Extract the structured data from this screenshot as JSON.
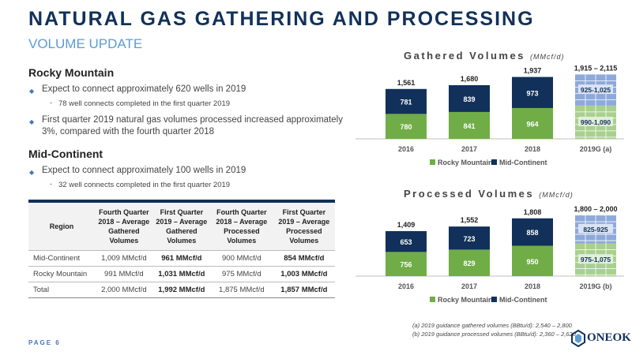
{
  "header": {
    "title": "NATURAL GAS GATHERING AND PROCESSING",
    "subtitle": "VOLUME UPDATE"
  },
  "rocky": {
    "heading": "Rocky Mountain",
    "b1": "Expect to connect approximately 620 wells in 2019",
    "b1_sub": "78 well connects completed in the first quarter 2019",
    "b2": "First quarter 2019 natural gas volumes processed increased approximately 3%, compared with the fourth quarter 2018"
  },
  "midcon": {
    "heading": "Mid-Continent",
    "b1": "Expect to connect approximately 100 wells in 2019",
    "b1_sub": "32 well connects completed in the first quarter 2019"
  },
  "table": {
    "headers": [
      "Region",
      "Fourth Quarter 2018 – Average Gathered Volumes",
      "First Quarter 2019 – Average Gathered Volumes",
      "Fourth Quarter 2018 – Average Processed Volumes",
      "First Quarter 2019 – Average Processed Volumes"
    ],
    "rows": [
      [
        "Mid-Continent",
        "1,009 MMcf/d",
        "961 MMcf/d",
        "900 MMcf/d",
        "854 MMcf/d"
      ],
      [
        "Rocky Mountain",
        "991 MMcf/d",
        "1,031 MMcf/d",
        "975 MMcf/d",
        "1,003 MMcf/d"
      ],
      [
        "Total",
        "2,000 MMcf/d",
        "1,992 MMcf/d",
        "1,875 MMcf/d",
        "1,857 MMcf/d"
      ]
    ]
  },
  "chart_data": [
    {
      "type": "bar",
      "stacked": true,
      "title": "Gathered Volumes",
      "unit": "(MMcf/d)",
      "categories": [
        "2016",
        "2017",
        "2018",
        "2019G (a)"
      ],
      "series": [
        {
          "name": "Rocky Mountain",
          "values": [
            780,
            841,
            964,
            null
          ],
          "color": "#70ad47"
        },
        {
          "name": "Mid-Continent",
          "values": [
            781,
            839,
            973,
            null
          ],
          "color": "#11315a"
        }
      ],
      "totals": [
        "1,561",
        "1,680",
        "1,937",
        "1,915 – 2,115"
      ],
      "guidance": {
        "rocky_label": "990-1,090",
        "rocky_value": 1040,
        "mid_label": "925-1,025",
        "mid_value": 975
      },
      "ylim": [
        0,
        2300
      ],
      "legend": "bottom"
    },
    {
      "type": "bar",
      "stacked": true,
      "title": "Processed Volumes",
      "unit": "(MMcf/d)",
      "categories": [
        "2016",
        "2017",
        "2018",
        "2019G (b)"
      ],
      "series": [
        {
          "name": "Rocky Mountain",
          "values": [
            756,
            829,
            950,
            null
          ],
          "color": "#70ad47"
        },
        {
          "name": "Mid-Continent",
          "values": [
            653,
            723,
            858,
            null
          ],
          "color": "#11315a"
        }
      ],
      "totals": [
        "1,409",
        "1,552",
        "1,808",
        "1,800 – 2,000"
      ],
      "guidance": {
        "rocky_label": "975-1,075",
        "rocky_value": 1025,
        "mid_label": "825-925",
        "mid_value": 875
      },
      "ylim": [
        0,
        2300
      ],
      "legend": "bottom"
    }
  ],
  "footnotes": {
    "a": "(a) 2019 guidance gathered volumes (BBtu/d): 2,540 – 2,800",
    "b": "(b) 2019 guidance processed volumes (BBtu/d): 2,360 – 2,620"
  },
  "footer": {
    "page": "PAGE 6",
    "logo": "ONEOK"
  },
  "colors": {
    "navy": "#11315a",
    "accent_blue": "#4472c4",
    "green": "#70ad47",
    "light_blue": "#5b9bd5"
  }
}
